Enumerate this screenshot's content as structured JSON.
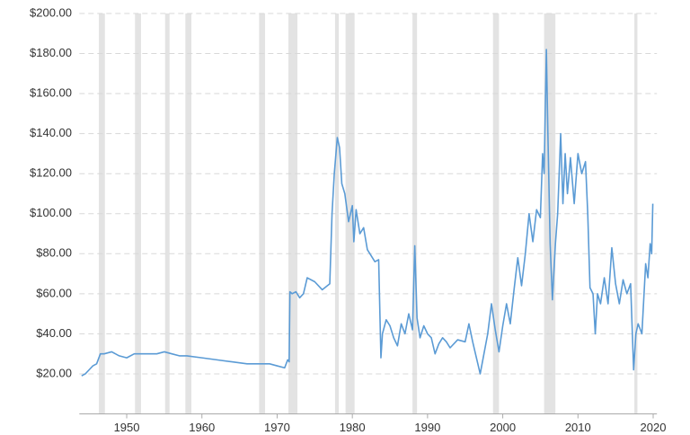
{
  "chart_data": {
    "type": "line",
    "x": [
      1944.0,
      1944.5,
      1945,
      1945.5,
      1946,
      1946.5,
      1947,
      1948,
      1949,
      1950,
      1951,
      1952,
      1953,
      1954,
      1955,
      1956,
      1957,
      1958,
      1960,
      1962,
      1964,
      1966,
      1968,
      1969,
      1970,
      1971,
      1971.4,
      1971.6,
      1971.7,
      1972,
      1972.5,
      1973,
      1973.5,
      1974,
      1975,
      1976,
      1977,
      1977.3,
      1977.6,
      1978,
      1978.3,
      1978.6,
      1979,
      1979.5,
      1980,
      1980.2,
      1980.5,
      1981,
      1981.5,
      1982,
      1983,
      1983.5,
      1983.8,
      1984,
      1984.5,
      1985,
      1985.5,
      1986,
      1986.5,
      1987,
      1987.5,
      1988,
      1988.3,
      1988.6,
      1989,
      1989.5,
      1990,
      1990.5,
      1991,
      1991.5,
      1992,
      1992.5,
      1993,
      1994,
      1995,
      1995.5,
      1996,
      1996.5,
      1997,
      1997.5,
      1998,
      1998.5,
      1999,
      1999.5,
      2000,
      2000.5,
      2001,
      2001.5,
      2002,
      2002.5,
      2003,
      2003.5,
      2004,
      2004.5,
      2005,
      2005.3,
      2005.5,
      2005.8,
      2006,
      2006.3,
      2006.6,
      2007,
      2007.3,
      2007.7,
      2008,
      2008.3,
      2008.6,
      2009,
      2009.5,
      2010,
      2010.5,
      2011,
      2011.3,
      2011.6,
      2012,
      2012.3,
      2012.6,
      2013,
      2013.5,
      2014,
      2014.5,
      2015,
      2015.5,
      2016,
      2016.5,
      2017,
      2017.4,
      2017.7,
      2018,
      2018.5,
      2019,
      2019.3,
      2019.6,
      2019.8,
      2019.95
    ],
    "values": [
      19,
      20,
      22,
      24,
      25,
      30,
      30,
      31,
      29,
      28,
      30,
      30,
      30,
      30,
      31,
      30,
      29,
      29,
      28,
      27,
      26,
      25,
      25,
      25,
      24,
      23,
      27,
      26,
      61,
      60,
      61,
      58,
      60,
      68,
      66,
      62,
      65,
      100,
      120,
      138,
      133,
      115,
      110,
      96,
      104,
      86,
      102,
      90,
      93,
      82,
      76,
      77,
      28,
      40,
      47,
      44,
      38,
      34,
      45,
      40,
      50,
      42,
      84,
      48,
      38,
      44,
      40,
      38,
      30,
      35,
      38,
      36,
      33,
      37,
      36,
      45,
      36,
      28,
      20,
      30,
      40,
      55,
      42,
      31,
      44,
      55,
      45,
      62,
      78,
      64,
      80,
      100,
      86,
      102,
      98,
      130,
      120,
      182,
      140,
      85,
      57,
      85,
      100,
      140,
      105,
      130,
      110,
      128,
      105,
      130,
      120,
      126,
      100,
      63,
      60,
      40,
      60,
      55,
      68,
      55,
      83,
      65,
      55,
      67,
      60,
      65,
      22,
      40,
      45,
      40,
      75,
      68,
      85,
      80,
      105
    ],
    "color": "#5b9bd5",
    "shaded_ranges": [
      [
        1946.3,
        1947.1
      ],
      [
        1951.1,
        1951.9
      ],
      [
        1955.1,
        1955.7
      ],
      [
        1957.8,
        1958.6
      ],
      [
        1967.6,
        1968.4
      ],
      [
        1971.5,
        1972.7
      ],
      [
        1977.7,
        1978.2
      ],
      [
        1979.1,
        1980.3
      ],
      [
        1988.0,
        1988.6
      ],
      [
        1998.7,
        1999.5
      ],
      [
        2005.5,
        2007.0
      ],
      [
        2017.5,
        2017.9
      ]
    ],
    "xlim": [
      1943.7,
      2020.5
    ],
    "xticks": [
      1950,
      1960,
      1970,
      1980,
      1990,
      2000,
      2010,
      2020
    ],
    "ylim": [
      0,
      200
    ],
    "yticks": [
      {
        "value": 20,
        "label": "$20.00"
      },
      {
        "value": 40,
        "label": "$40.00"
      },
      {
        "value": 60,
        "label": "$60.00"
      },
      {
        "value": 80,
        "label": "$80.00"
      },
      {
        "value": 100,
        "label": "$100.00"
      },
      {
        "value": 120,
        "label": "$120.00"
      },
      {
        "value": 140,
        "label": "$140.00"
      },
      {
        "value": 160,
        "label": "$160.00"
      },
      {
        "value": 180,
        "label": "$180.00"
      },
      {
        "value": 200,
        "label": "$200.00"
      }
    ],
    "grid": true
  }
}
